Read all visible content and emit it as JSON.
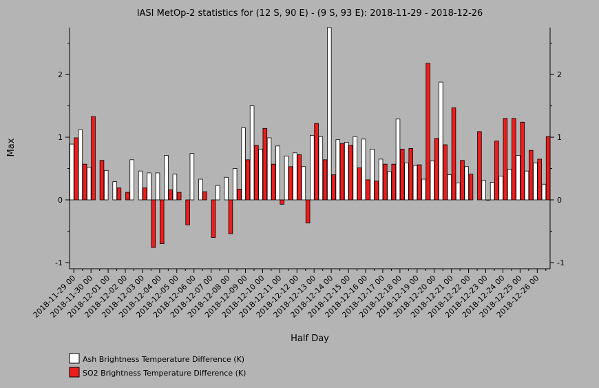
{
  "chart_data": {
    "type": "bar",
    "title": "IASI MetOp-2 statistics for (12 S, 90 E) - (9 S, 93 E): 2018-11-29 - 2018-12-26",
    "xlabel": "Half Day",
    "ylabel": "Max",
    "ylim": [
      -1.1,
      2.75
    ],
    "yticks": [
      -1,
      0,
      1,
      2
    ],
    "legend_position": "bottom-left",
    "grid": false,
    "categories": [
      "2018-11-29 00",
      "2018-11-29 12",
      "2018-11-30 00",
      "2018-11-30 12",
      "2018-12-01 00",
      "2018-12-01 12",
      "2018-12-02 00",
      "2018-12-02 12",
      "2018-12-03 00",
      "2018-12-03 12",
      "2018-12-04 00",
      "2018-12-04 12",
      "2018-12-05 00",
      "2018-12-05 12",
      "2018-12-06 00",
      "2018-12-06 12",
      "2018-12-07 00",
      "2018-12-07 12",
      "2018-12-08 00",
      "2018-12-08 12",
      "2018-12-09 00",
      "2018-12-09 12",
      "2018-12-10 00",
      "2018-12-10 12",
      "2018-12-11 00",
      "2018-12-11 12",
      "2018-12-12 00",
      "2018-12-12 12",
      "2018-12-13 00",
      "2018-12-13 12",
      "2018-12-14 00",
      "2018-12-14 12",
      "2018-12-15 00",
      "2018-12-15 12",
      "2018-12-16 00",
      "2018-12-16 12",
      "2018-12-17 00",
      "2018-12-17 12",
      "2018-12-18 00",
      "2018-12-18 12",
      "2018-12-19 00",
      "2018-12-19 12",
      "2018-12-20 00",
      "2018-12-20 12",
      "2018-12-21 00",
      "2018-12-21 12",
      "2018-12-22 00",
      "2018-12-22 12",
      "2018-12-23 00",
      "2018-12-23 12",
      "2018-12-24 00",
      "2018-12-24 12",
      "2018-12-25 00",
      "2018-12-25 12",
      "2018-12-26 00",
      "2018-12-26 12"
    ],
    "tick_labels": [
      "2018-11-29 00",
      "2018-11-30 00",
      "2018-12-01 00",
      "2018-12-02 00",
      "2018-12-03 00",
      "2018-12-04 00",
      "2018-12-05 00",
      "2018-12-06 00",
      "2018-12-07 00",
      "2018-12-08 00",
      "2018-12-09 00",
      "2018-12-10 00",
      "2018-12-11 00",
      "2018-12-12 00",
      "2018-12-13 00",
      "2018-12-14 00",
      "2018-12-15 00",
      "2018-12-16 00",
      "2018-12-17 00",
      "2018-12-18 00",
      "2018-12-19 00",
      "2018-12-20 00",
      "2018-12-21 00",
      "2018-12-22 00",
      "2018-12-23 00",
      "2018-12-24 00",
      "2018-12-25 00",
      "2018-12-26 00"
    ],
    "series": [
      {
        "name": "Ash Brightness Temperature Difference (K)",
        "color": "#ffffff",
        "values": [
          0.89,
          1.12,
          0.52,
          null,
          0.47,
          0.29,
          null,
          0.64,
          0.46,
          0.43,
          0.43,
          0.71,
          0.41,
          null,
          0.74,
          0.33,
          null,
          0.23,
          0.36,
          0.5,
          1.15,
          1.5,
          0.81,
          0.99,
          0.86,
          0.7,
          0.75,
          0.53,
          1.03,
          1.01,
          2.75,
          0.96,
          0.92,
          1.01,
          0.97,
          0.81,
          0.65,
          0.45,
          1.29,
          0.59,
          0.55,
          0.33,
          0.62,
          1.88,
          0.4,
          0.27,
          0.53,
          null,
          0.31,
          0.28,
          0.38,
          0.49,
          0.71,
          0.46,
          0.59,
          0.25
        ]
      },
      {
        "name": "SO2 Brightness Temperature Difference (K)",
        "color": "#ee1c1c",
        "values": [
          0.99,
          0.57,
          1.33,
          0.63,
          null,
          0.19,
          0.12,
          null,
          0.19,
          -0.76,
          -0.7,
          0.16,
          0.12,
          -0.4,
          null,
          0.13,
          -0.6,
          null,
          -0.54,
          0.17,
          0.64,
          0.87,
          1.14,
          0.57,
          -0.07,
          0.53,
          0.72,
          -0.37,
          1.22,
          0.64,
          0.4,
          0.9,
          0.87,
          0.51,
          0.32,
          0.3,
          0.57,
          0.57,
          0.81,
          0.82,
          0.56,
          2.18,
          0.98,
          0.88,
          1.47,
          0.63,
          0.41,
          1.09,
          0.0,
          0.94,
          1.3,
          1.3,
          1.24,
          0.79,
          0.65,
          1.01
        ]
      }
    ]
  }
}
